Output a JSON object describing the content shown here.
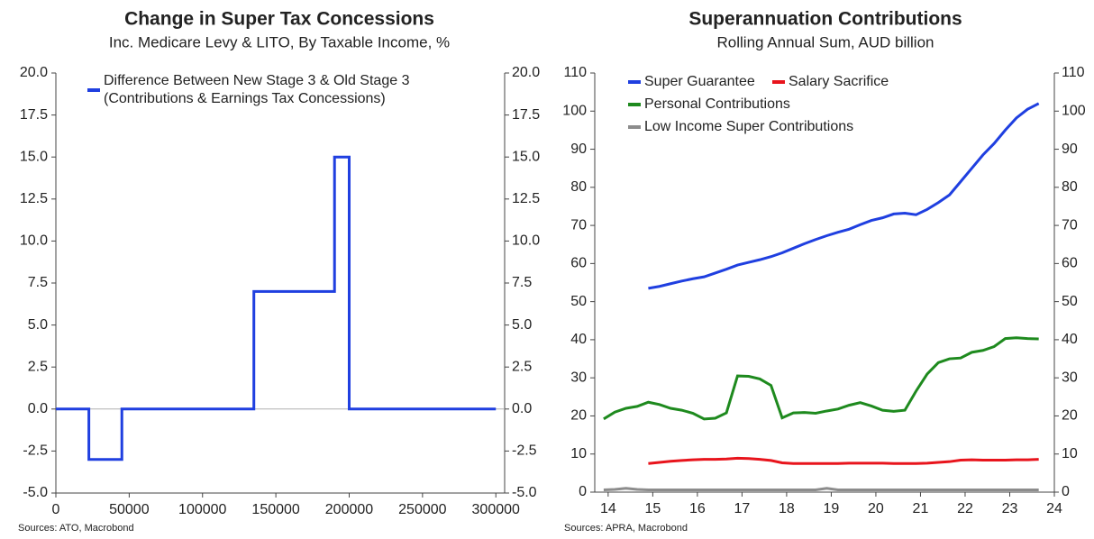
{
  "chart_data": [
    {
      "type": "line",
      "title": "Change in Super Tax Concessions",
      "subtitle": "Inc. Medicare Levy & LITO, By Taxable Income, %",
      "source": "Sources: ATO, Macrobond",
      "x": [
        0,
        22500,
        22500,
        45000,
        45000,
        135000,
        135000,
        190000,
        190000,
        200000,
        200000,
        300000
      ],
      "series": [
        {
          "name": "Difference Between New Stage 3 & Old Stage 3\n(Contributions & Earnings Tax Concessions)",
          "color": "#1f3fe0",
          "values": [
            0,
            0,
            -3,
            -3,
            0,
            0,
            7,
            7,
            15,
            15,
            0,
            0
          ]
        }
      ],
      "xlim": [
        0,
        306000
      ],
      "xticks": [
        0,
        50000,
        100000,
        150000,
        200000,
        250000,
        300000
      ],
      "ylim": [
        -5,
        20
      ],
      "yticks": [
        {
          "value": -5,
          "label": "-5.0"
        },
        -2.5,
        {
          "value": 0,
          "label": "0.0"
        },
        2.5,
        {
          "value": 5,
          "label": "5.0"
        },
        7.5,
        {
          "value": 10,
          "label": "10.0"
        },
        12.5,
        {
          "value": 15,
          "label": "15.0"
        },
        17.5,
        {
          "value": 20,
          "label": "20.0"
        }
      ],
      "legend": "top-left"
    },
    {
      "type": "line",
      "title": "Superannuation Contributions",
      "subtitle": "Rolling Annual Sum, AUD billion",
      "source": "Sources: APRA, Macrobond",
      "x": [
        13.9,
        14.15,
        14.4,
        14.65,
        14.9,
        15.15,
        15.4,
        15.65,
        15.9,
        16.15,
        16.4,
        16.65,
        16.9,
        17.15,
        17.4,
        17.65,
        17.9,
        18.15,
        18.4,
        18.65,
        18.9,
        19.15,
        19.4,
        19.65,
        19.9,
        20.15,
        20.4,
        20.65,
        20.9,
        21.15,
        21.4,
        21.65,
        21.9,
        22.15,
        22.4,
        22.65,
        22.9,
        23.15,
        23.4,
        23.65
      ],
      "series": [
        {
          "name": "Super Guarantee",
          "color": "#1f3fe0",
          "values": [
            null,
            null,
            null,
            null,
            53.5,
            54,
            54.7,
            55.4,
            56,
            56.5,
            57.5,
            58.5,
            59.6,
            60.3,
            61,
            61.8,
            62.8,
            64,
            65.2,
            66.3,
            67.3,
            68.2,
            69,
            70.2,
            71.3,
            72,
            73,
            73.2,
            72.8,
            74.2,
            76,
            78,
            81.5,
            85,
            88.5,
            91.5,
            95,
            98.2,
            100.5,
            102
          ]
        },
        {
          "name": "Salary Sacrifice",
          "color": "#e8141c",
          "values": [
            null,
            null,
            null,
            null,
            7.5,
            7.8,
            8.1,
            8.3,
            8.5,
            8.6,
            8.6,
            8.7,
            8.9,
            8.8,
            8.6,
            8.3,
            7.7,
            7.5,
            7.5,
            7.5,
            7.5,
            7.5,
            7.6,
            7.6,
            7.6,
            7.6,
            7.5,
            7.5,
            7.5,
            7.6,
            7.8,
            8,
            8.4,
            8.5,
            8.4,
            8.4,
            8.4,
            8.5,
            8.5,
            8.6
          ]
        },
        {
          "name": "Personal Contributions",
          "color": "#1e8a1e",
          "values": [
            19.2,
            21,
            22,
            22.5,
            23.6,
            23,
            22,
            21.5,
            20.7,
            19.2,
            19.4,
            20.8,
            30.5,
            30.4,
            29.7,
            28,
            19.5,
            20.8,
            20.9,
            20.7,
            21.3,
            21.8,
            22.8,
            23.5,
            22.6,
            21.5,
            21.2,
            21.5,
            26.5,
            31,
            34,
            35,
            35.2,
            36.7,
            37.2,
            38.2,
            40.3,
            40.5,
            40.3,
            40.2
          ]
        },
        {
          "name": "Low Income Super Contributions",
          "color": "#8c8c8c",
          "values": [
            0.6,
            0.7,
            1,
            0.7,
            0.6,
            0.6,
            0.6,
            0.6,
            0.6,
            0.6,
            0.6,
            0.6,
            0.6,
            0.6,
            0.6,
            0.6,
            0.6,
            0.6,
            0.6,
            0.6,
            1,
            0.6,
            0.6,
            0.6,
            0.6,
            0.6,
            0.6,
            0.6,
            0.6,
            0.6,
            0.6,
            0.6,
            0.6,
            0.6,
            0.6,
            0.6,
            0.6,
            0.6,
            0.6,
            0.6
          ]
        }
      ],
      "xlim": [
        13.7,
        24
      ],
      "xticks": [
        14,
        15,
        16,
        17,
        18,
        19,
        20,
        21,
        22,
        23,
        24
      ],
      "ylim": [
        0,
        110
      ],
      "yticks": [
        0,
        10,
        20,
        30,
        40,
        50,
        60,
        70,
        80,
        90,
        100,
        110
      ],
      "legend": "top-left"
    }
  ]
}
